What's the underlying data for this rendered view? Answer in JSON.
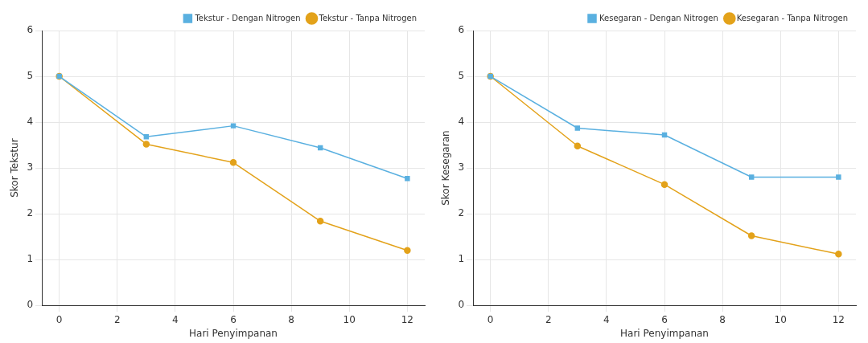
{
  "chart_data": [
    {
      "type": "line",
      "x": [
        0,
        3,
        6,
        9,
        12
      ],
      "xlabel": "Hari Penyimpanan",
      "ylabel": "Skor Tekstur",
      "xlim": [
        -0.6,
        12.6
      ],
      "xticks": [
        0,
        2,
        4,
        6,
        8,
        10,
        12
      ],
      "ylim": [
        0,
        6
      ],
      "yticks": [
        0,
        1,
        2,
        3,
        4,
        5,
        6
      ],
      "grid": true,
      "legend": "top right",
      "series": [
        {
          "name": "Tekstur - Tanpa Nitrogen",
          "color": "#e3a21a",
          "marker": "circle",
          "values": [
            5,
            3.52,
            3.12,
            1.84,
            1.2
          ]
        },
        {
          "name": "Tekstur - Dengan Nitrogen",
          "color": "#5ab0e0",
          "marker": "square",
          "values": [
            5,
            3.68,
            3.92,
            3.44,
            2.77
          ]
        }
      ]
    },
    {
      "type": "line",
      "x": [
        0,
        3,
        6,
        9,
        12
      ],
      "xlabel": "Hari Penyimpanan",
      "ylabel": "Skor Kesegaran",
      "xlim": [
        -0.6,
        12.6
      ],
      "xticks": [
        0,
        2,
        4,
        6,
        8,
        10,
        12
      ],
      "ylim": [
        0,
        6
      ],
      "yticks": [
        0,
        1,
        2,
        3,
        4,
        5,
        6
      ],
      "grid": true,
      "legend": "top right",
      "series": [
        {
          "name": "Kesegaran - Tanpa Nitrogen",
          "color": "#e3a21a",
          "marker": "circle",
          "values": [
            5,
            3.48,
            2.64,
            1.52,
            1.12
          ]
        },
        {
          "name": "Kesegaran - Dengan Nitrogen",
          "color": "#5ab0e0",
          "marker": "square",
          "values": [
            5,
            3.87,
            3.72,
            2.8,
            2.8
          ]
        }
      ]
    }
  ]
}
